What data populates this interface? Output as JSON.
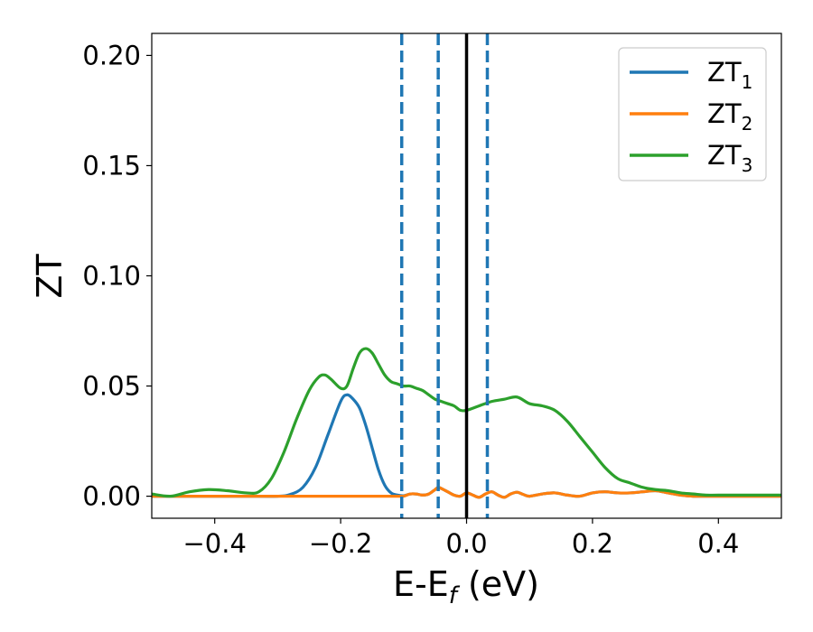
{
  "chart_data": {
    "type": "line",
    "xlabel_main": "E-E",
    "xlabel_sub": "f",
    "xlabel_unit": " (eV)",
    "ylabel": "ZT",
    "xlim": [
      -0.5,
      0.5
    ],
    "ylim": [
      -0.01,
      0.21
    ],
    "xticks": [
      -0.4,
      -0.2,
      0.0,
      0.2,
      0.4
    ],
    "xtick_labels": [
      "−0.4",
      "−0.2",
      "0.0",
      "0.2",
      "0.4"
    ],
    "yticks": [
      0.0,
      0.05,
      0.1,
      0.15,
      0.2
    ],
    "ytick_labels": [
      "0.00",
      "0.05",
      "0.10",
      "0.15",
      "0.20"
    ],
    "legend_position": "top-right",
    "series": [
      {
        "name": "ZT",
        "name_sub": "1",
        "color": "#1f77b4",
        "x": [
          -0.5,
          -0.45,
          -0.4,
          -0.35,
          -0.3,
          -0.28,
          -0.26,
          -0.24,
          -0.22,
          -0.2,
          -0.19,
          -0.18,
          -0.17,
          -0.16,
          -0.15,
          -0.14,
          -0.13,
          -0.12,
          -0.11,
          -0.1,
          -0.09,
          -0.08,
          -0.07,
          -0.06,
          -0.05,
          -0.045,
          -0.04,
          -0.03,
          -0.02,
          -0.01,
          0.0,
          0.01,
          0.02,
          0.03,
          0.04,
          0.05,
          0.06,
          0.07,
          0.08,
          0.09,
          0.1,
          0.12,
          0.14,
          0.16,
          0.18,
          0.2,
          0.22,
          0.24,
          0.26,
          0.28,
          0.3,
          0.32,
          0.34,
          0.36,
          0.4,
          0.45,
          0.5
        ],
        "y": [
          0.0,
          0.0,
          0.0,
          0.0,
          0.0,
          0.0008,
          0.004,
          0.013,
          0.028,
          0.043,
          0.046,
          0.044,
          0.04,
          0.032,
          0.022,
          0.012,
          0.005,
          0.0015,
          0.0005,
          0.0002,
          0.001,
          0.001,
          0.0005,
          0.001,
          0.003,
          0.004,
          0.0035,
          0.002,
          0.0005,
          0.0,
          0.0015,
          0.0005,
          -0.0005,
          0.001,
          0.002,
          0.0005,
          -0.0005,
          0.001,
          0.0018,
          0.0008,
          0.0,
          0.001,
          0.0015,
          0.0005,
          0.0,
          0.0015,
          0.002,
          0.0015,
          0.0015,
          0.002,
          0.0025,
          0.0015,
          0.0005,
          0.0,
          0.0,
          0.0,
          0.0
        ]
      },
      {
        "name": "ZT",
        "name_sub": "2",
        "color": "#ff7f0e",
        "x": [
          -0.5,
          -0.45,
          -0.4,
          -0.35,
          -0.3,
          -0.28,
          -0.26,
          -0.24,
          -0.22,
          -0.2,
          -0.19,
          -0.18,
          -0.17,
          -0.16,
          -0.15,
          -0.14,
          -0.13,
          -0.12,
          -0.11,
          -0.1,
          -0.09,
          -0.08,
          -0.07,
          -0.06,
          -0.05,
          -0.045,
          -0.04,
          -0.03,
          -0.02,
          -0.01,
          0.0,
          0.01,
          0.02,
          0.03,
          0.04,
          0.05,
          0.06,
          0.07,
          0.08,
          0.09,
          0.1,
          0.12,
          0.14,
          0.16,
          0.18,
          0.2,
          0.22,
          0.24,
          0.26,
          0.28,
          0.3,
          0.32,
          0.34,
          0.36,
          0.4,
          0.45,
          0.5
        ],
        "y": [
          0.0,
          0.0,
          0.0,
          0.0,
          0.0,
          0.0,
          0.0,
          0.0,
          0.0,
          0.0,
          0.0,
          0.0,
          0.0,
          0.0,
          0.0,
          0.0,
          0.0,
          0.0,
          0.0,
          0.0,
          0.001,
          0.001,
          0.0005,
          0.001,
          0.003,
          0.004,
          0.0035,
          0.002,
          0.0005,
          0.0,
          0.0015,
          0.0005,
          -0.0005,
          0.001,
          0.002,
          0.0005,
          -0.0005,
          0.001,
          0.0018,
          0.0008,
          0.0,
          0.001,
          0.0015,
          0.0005,
          0.0,
          0.0015,
          0.002,
          0.0015,
          0.0015,
          0.002,
          0.0025,
          0.0015,
          0.0005,
          0.0,
          0.0,
          0.0,
          0.0
        ]
      },
      {
        "name": "ZT",
        "name_sub": "3",
        "color": "#2ca02c",
        "x": [
          -0.5,
          -0.47,
          -0.44,
          -0.41,
          -0.38,
          -0.35,
          -0.33,
          -0.31,
          -0.29,
          -0.27,
          -0.25,
          -0.235,
          -0.225,
          -0.215,
          -0.2,
          -0.19,
          -0.18,
          -0.17,
          -0.16,
          -0.15,
          -0.14,
          -0.13,
          -0.12,
          -0.11,
          -0.1,
          -0.09,
          -0.08,
          -0.07,
          -0.06,
          -0.05,
          -0.04,
          -0.03,
          -0.02,
          -0.01,
          0.0,
          0.02,
          0.04,
          0.06,
          0.08,
          0.1,
          0.12,
          0.14,
          0.16,
          0.18,
          0.2,
          0.22,
          0.24,
          0.26,
          0.28,
          0.3,
          0.32,
          0.34,
          0.36,
          0.38,
          0.4,
          0.45,
          0.5
        ],
        "y": [
          0.001,
          0.0,
          0.002,
          0.003,
          0.0025,
          0.0015,
          0.002,
          0.008,
          0.02,
          0.035,
          0.048,
          0.054,
          0.055,
          0.053,
          0.049,
          0.05,
          0.058,
          0.065,
          0.067,
          0.065,
          0.06,
          0.055,
          0.052,
          0.051,
          0.05,
          0.05,
          0.049,
          0.048,
          0.046,
          0.044,
          0.043,
          0.042,
          0.041,
          0.039,
          0.039,
          0.041,
          0.043,
          0.044,
          0.045,
          0.042,
          0.041,
          0.039,
          0.034,
          0.027,
          0.02,
          0.013,
          0.008,
          0.006,
          0.004,
          0.003,
          0.0025,
          0.0015,
          0.001,
          0.0005,
          0.0005,
          0.0005,
          0.0005
        ]
      }
    ],
    "vlines": [
      {
        "x": -0.103,
        "style": "dashed",
        "color": "#1f77b4"
      },
      {
        "x": -0.045,
        "style": "dashed",
        "color": "#1f77b4"
      },
      {
        "x": 0.0,
        "style": "solid",
        "color": "#000000"
      },
      {
        "x": 0.033,
        "style": "dashed",
        "color": "#1f77b4"
      }
    ]
  }
}
